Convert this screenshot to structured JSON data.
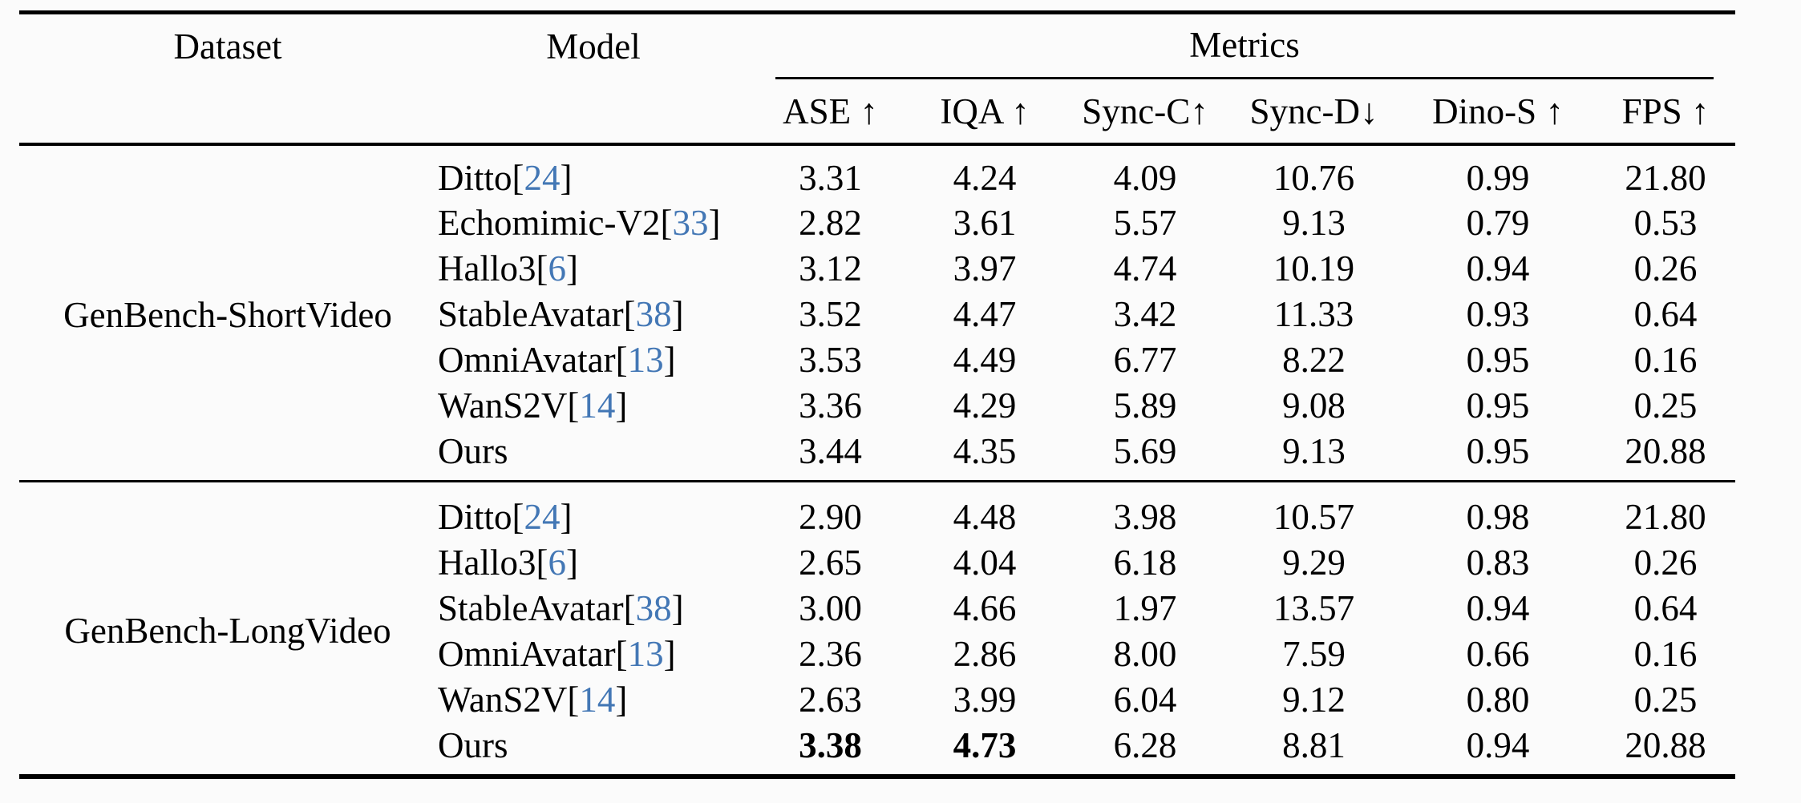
{
  "page": {
    "background": "#fbfbfb",
    "rule_color": "#000000",
    "cite_color": "#4377b5"
  },
  "table": {
    "header": {
      "dataset_label": "Dataset",
      "model_label": "Model",
      "metrics_label": "Metrics",
      "metric_columns": [
        "ASE ↑",
        "IQA ↑",
        "Sync-C↑",
        "Sync-D↓",
        "Dino-S ↑",
        "FPS ↑"
      ]
    },
    "cite_brackets": [
      "[",
      "]"
    ],
    "groups": [
      {
        "dataset": "GenBench-ShortVideo",
        "rows": [
          {
            "model": "Ditto",
            "cite": "24",
            "values": [
              "3.31",
              "4.24",
              "4.09",
              "10.76",
              "0.99",
              "21.80"
            ],
            "bold": []
          },
          {
            "model": "Echomimic-V2",
            "cite": "33",
            "values": [
              "2.82",
              "3.61",
              "5.57",
              "9.13",
              "0.79",
              "0.53"
            ],
            "bold": []
          },
          {
            "model": "Hallo3",
            "cite": "6",
            "values": [
              "3.12",
              "3.97",
              "4.74",
              "10.19",
              "0.94",
              "0.26"
            ],
            "bold": []
          },
          {
            "model": "StableAvatar",
            "cite": "38",
            "values": [
              "3.52",
              "4.47",
              "3.42",
              "11.33",
              "0.93",
              "0.64"
            ],
            "bold": []
          },
          {
            "model": "OmniAvatar",
            "cite": "13",
            "values": [
              "3.53",
              "4.49",
              "6.77",
              "8.22",
              "0.95",
              "0.16"
            ],
            "bold": []
          },
          {
            "model": "WanS2V",
            "cite": "14",
            "values": [
              "3.36",
              "4.29",
              "5.89",
              "9.08",
              "0.95",
              "0.25"
            ],
            "bold": []
          },
          {
            "model": "Ours",
            "cite": null,
            "values": [
              "3.44",
              "4.35",
              "5.69",
              "9.13",
              "0.95",
              "20.88"
            ],
            "bold": []
          }
        ]
      },
      {
        "dataset": "GenBench-LongVideo",
        "rows": [
          {
            "model": "Ditto",
            "cite": "24",
            "values": [
              "2.90",
              "4.48",
              "3.98",
              "10.57",
              "0.98",
              "21.80"
            ],
            "bold": []
          },
          {
            "model": "Hallo3",
            "cite": "6",
            "values": [
              "2.65",
              "4.04",
              "6.18",
              "9.29",
              "0.83",
              "0.26"
            ],
            "bold": []
          },
          {
            "model": "StableAvatar",
            "cite": "38",
            "values": [
              "3.00",
              "4.66",
              "1.97",
              "13.57",
              "0.94",
              "0.64"
            ],
            "bold": []
          },
          {
            "model": "OmniAvatar",
            "cite": "13",
            "values": [
              "2.36",
              "2.86",
              "8.00",
              "7.59",
              "0.66",
              "0.16"
            ],
            "bold": []
          },
          {
            "model": "WanS2V",
            "cite": "14",
            "values": [
              "2.63",
              "3.99",
              "6.04",
              "9.12",
              "0.80",
              "0.25"
            ],
            "bold": []
          },
          {
            "model": "Ours",
            "cite": null,
            "values": [
              "3.38",
              "4.73",
              "6.28",
              "8.81",
              "0.94",
              "20.88"
            ],
            "bold": [
              0,
              1
            ]
          }
        ]
      }
    ]
  }
}
